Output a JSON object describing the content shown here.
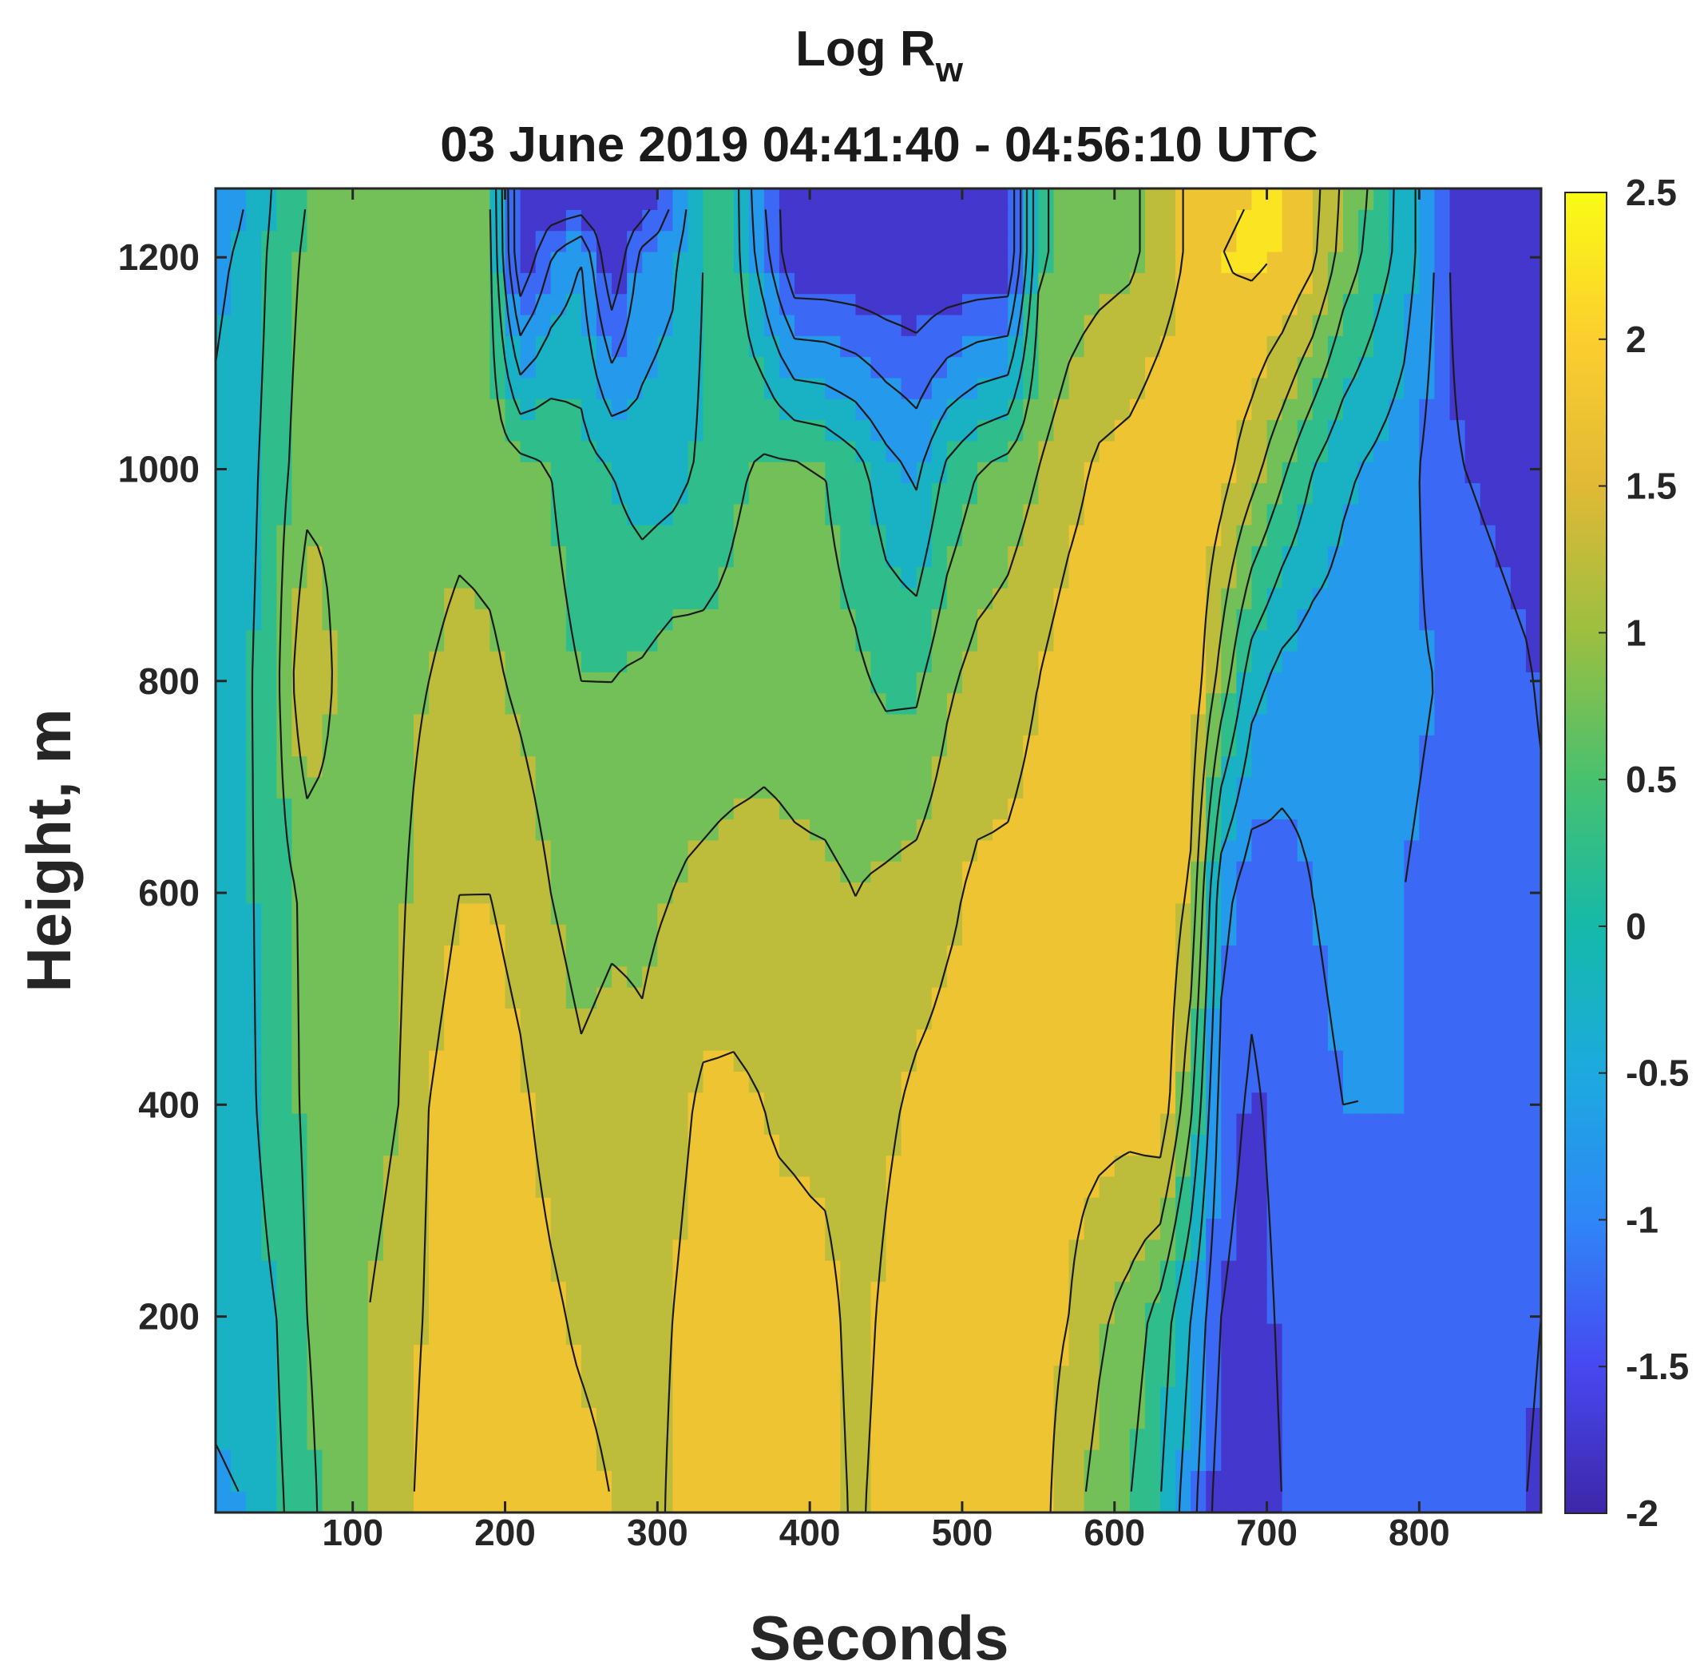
{
  "chart_data": {
    "type": "heatmap",
    "title_main": "Log R",
    "title_subscript": "w",
    "subtitle": "03 June 2019 04:41:40 - 04:56:10 UTC",
    "xlabel": "Seconds",
    "ylabel": "Height, m",
    "xlim": [
      10,
      880
    ],
    "ylim": [
      15,
      1265
    ],
    "xticks": [
      100,
      200,
      300,
      400,
      500,
      600,
      700,
      800
    ],
    "yticks": [
      200,
      400,
      600,
      800,
      1000,
      1200
    ],
    "colorbar": {
      "range": [
        -2,
        2.5
      ],
      "ticks": [
        "2.5",
        "2",
        "1.5",
        "1",
        "0.5",
        "0",
        "-0.5",
        "-1",
        "-1.5",
        "-2"
      ],
      "colormap": "parula",
      "stops": [
        "#3e26a8",
        "#4748f1",
        "#2e87f7",
        "#1caadf",
        "#15b9a9",
        "#48c16e",
        "#9cbf40",
        "#e0b936",
        "#fcce2e",
        "#f9fb15"
      ]
    },
    "grid": false,
    "levels": [
      -2,
      -1.5,
      -1,
      -0.5,
      0,
      0.5,
      1,
      1.5,
      2,
      2.5
    ],
    "field_heights_m": [
      20,
      200,
      400,
      600,
      800,
      1000,
      1200,
      1260
    ],
    "field_seconds": [
      10,
      30,
      50,
      70,
      90,
      110,
      130,
      150,
      170,
      190,
      210,
      230,
      250,
      270,
      290,
      310,
      330,
      350,
      370,
      390,
      410,
      430,
      450,
      470,
      490,
      510,
      530,
      550,
      570,
      590,
      610,
      630,
      650,
      670,
      690,
      710,
      730,
      750,
      770,
      790,
      810,
      830,
      850,
      870,
      880
    ],
    "field_values": [
      [
        -0.6,
        -0.5,
        -0.1,
        0.3,
        0.9,
        1.0,
        1.2,
        1.8,
        2.0,
        2.0,
        1.8,
        1.7,
        1.7,
        1.5,
        1.2,
        1.6,
        1.9,
        1.7,
        1.6,
        1.7,
        1.8,
        1.4,
        1.7,
        2.0,
        2.0,
        1.9,
        1.8,
        1.7,
        1.2,
        0.8,
        0.5,
        0.0,
        -0.8,
        -1.8,
        -1.9,
        -1.5,
        -1.3,
        -1.2,
        -1.1,
        -1.0,
        -1.1,
        -1.2,
        -1.3,
        -1.5,
        -1.6
      ],
      [
        -0.3,
        -0.2,
        0.0,
        0.5,
        0.9,
        1.0,
        1.1,
        1.6,
        1.8,
        1.9,
        1.8,
        1.6,
        1.4,
        1.3,
        1.2,
        1.5,
        1.8,
        1.7,
        1.6,
        1.7,
        1.7,
        1.3,
        1.6,
        1.9,
        1.9,
        1.8,
        1.8,
        1.7,
        1.5,
        1.1,
        0.8,
        0.3,
        -0.5,
        -1.5,
        -1.8,
        -1.4,
        -1.2,
        -1.1,
        -1.1,
        -1.0,
        -1.1,
        -1.2,
        -1.3,
        -1.4,
        -1.5
      ],
      [
        -0.2,
        -0.1,
        0.2,
        0.6,
        0.8,
        0.9,
        1.0,
        1.5,
        1.7,
        1.8,
        1.6,
        1.3,
        1.1,
        1.2,
        1.1,
        1.3,
        1.6,
        1.6,
        1.5,
        1.4,
        1.3,
        1.2,
        1.4,
        1.6,
        1.7,
        1.7,
        1.6,
        1.6,
        1.7,
        1.7,
        1.7,
        1.9,
        0.6,
        -1.2,
        -1.6,
        -1.3,
        -1.1,
        -1.0,
        -1.0,
        -1.0,
        -1.1,
        -1.2,
        -1.3,
        -1.4,
        -1.4
      ],
      [
        -0.2,
        -0.1,
        0.3,
        0.6,
        0.8,
        0.9,
        0.9,
        1.3,
        1.5,
        1.5,
        1.3,
        1.0,
        0.8,
        0.9,
        0.9,
        1.0,
        1.1,
        1.2,
        1.2,
        1.1,
        1.1,
        1.0,
        1.1,
        1.2,
        1.4,
        1.6,
        1.6,
        1.7,
        1.9,
        2.0,
        2.0,
        2.0,
        1.4,
        -0.8,
        -1.3,
        -1.2,
        -1.0,
        -0.9,
        -1.0,
        -1.0,
        -1.1,
        -1.1,
        -1.2,
        -1.2,
        -1.3
      ],
      [
        -0.3,
        -0.1,
        0.4,
        1.5,
        0.9,
        0.8,
        0.8,
        1.0,
        1.2,
        1.1,
        0.9,
        0.7,
        0.5,
        0.5,
        0.6,
        0.8,
        0.7,
        0.7,
        0.8,
        0.8,
        0.7,
        0.6,
        0.4,
        0.4,
        0.9,
        1.2,
        1.3,
        1.5,
        1.8,
        1.9,
        1.9,
        2.0,
        1.9,
        0.8,
        -0.3,
        -0.7,
        -0.8,
        -0.8,
        -0.9,
        -0.9,
        -1.0,
        -1.0,
        -1.2,
        -1.4,
        -1.6
      ],
      [
        -0.4,
        -0.2,
        0.3,
        0.8,
        0.9,
        0.8,
        0.7,
        0.7,
        0.8,
        0.8,
        0.7,
        0.5,
        0.2,
        0.0,
        -0.3,
        -0.2,
        0.1,
        0.4,
        0.6,
        0.6,
        0.5,
        0.2,
        -0.3,
        -0.6,
        0.1,
        0.5,
        0.7,
        1.0,
        1.3,
        1.6,
        1.7,
        1.9,
        2.0,
        1.7,
        1.2,
        0.6,
        0.0,
        -0.4,
        -0.6,
        -0.8,
        -1.2,
        -1.5,
        -1.7,
        -1.9,
        -2.0
      ],
      [
        -0.6,
        -0.4,
        0.2,
        0.6,
        0.8,
        0.7,
        0.7,
        0.6,
        0.6,
        0.6,
        -2.0,
        -1.0,
        -0.5,
        -2.0,
        -0.8,
        -0.6,
        0.0,
        0.2,
        -0.8,
        -2.0,
        -2.0,
        -2.0,
        -2.0,
        -2.0,
        -2.0,
        -2.0,
        -2.0,
        0.4,
        0.7,
        0.8,
        0.9,
        1.2,
        1.6,
        2.0,
        2.1,
        2.0,
        1.6,
        0.8,
        0.3,
        -0.2,
        -1.0,
        -2.0,
        -2.0,
        -2.0,
        -2.0
      ],
      [
        -0.8,
        -0.5,
        0.1,
        0.5,
        0.7,
        0.7,
        0.6,
        0.6,
        0.6,
        0.5,
        -2.0,
        -2.0,
        -2.0,
        -2.0,
        -2.0,
        -1.0,
        0.0,
        0.2,
        -1.0,
        -2.0,
        -2.0,
        -2.0,
        -2.0,
        -2.0,
        -2.0,
        -2.0,
        -2.0,
        0.4,
        0.7,
        0.8,
        0.9,
        1.2,
        1.6,
        1.9,
        2.0,
        2.0,
        1.7,
        0.9,
        0.4,
        -0.2,
        -1.0,
        -2.0,
        -2.0,
        -2.0,
        -2.0
      ]
    ]
  }
}
